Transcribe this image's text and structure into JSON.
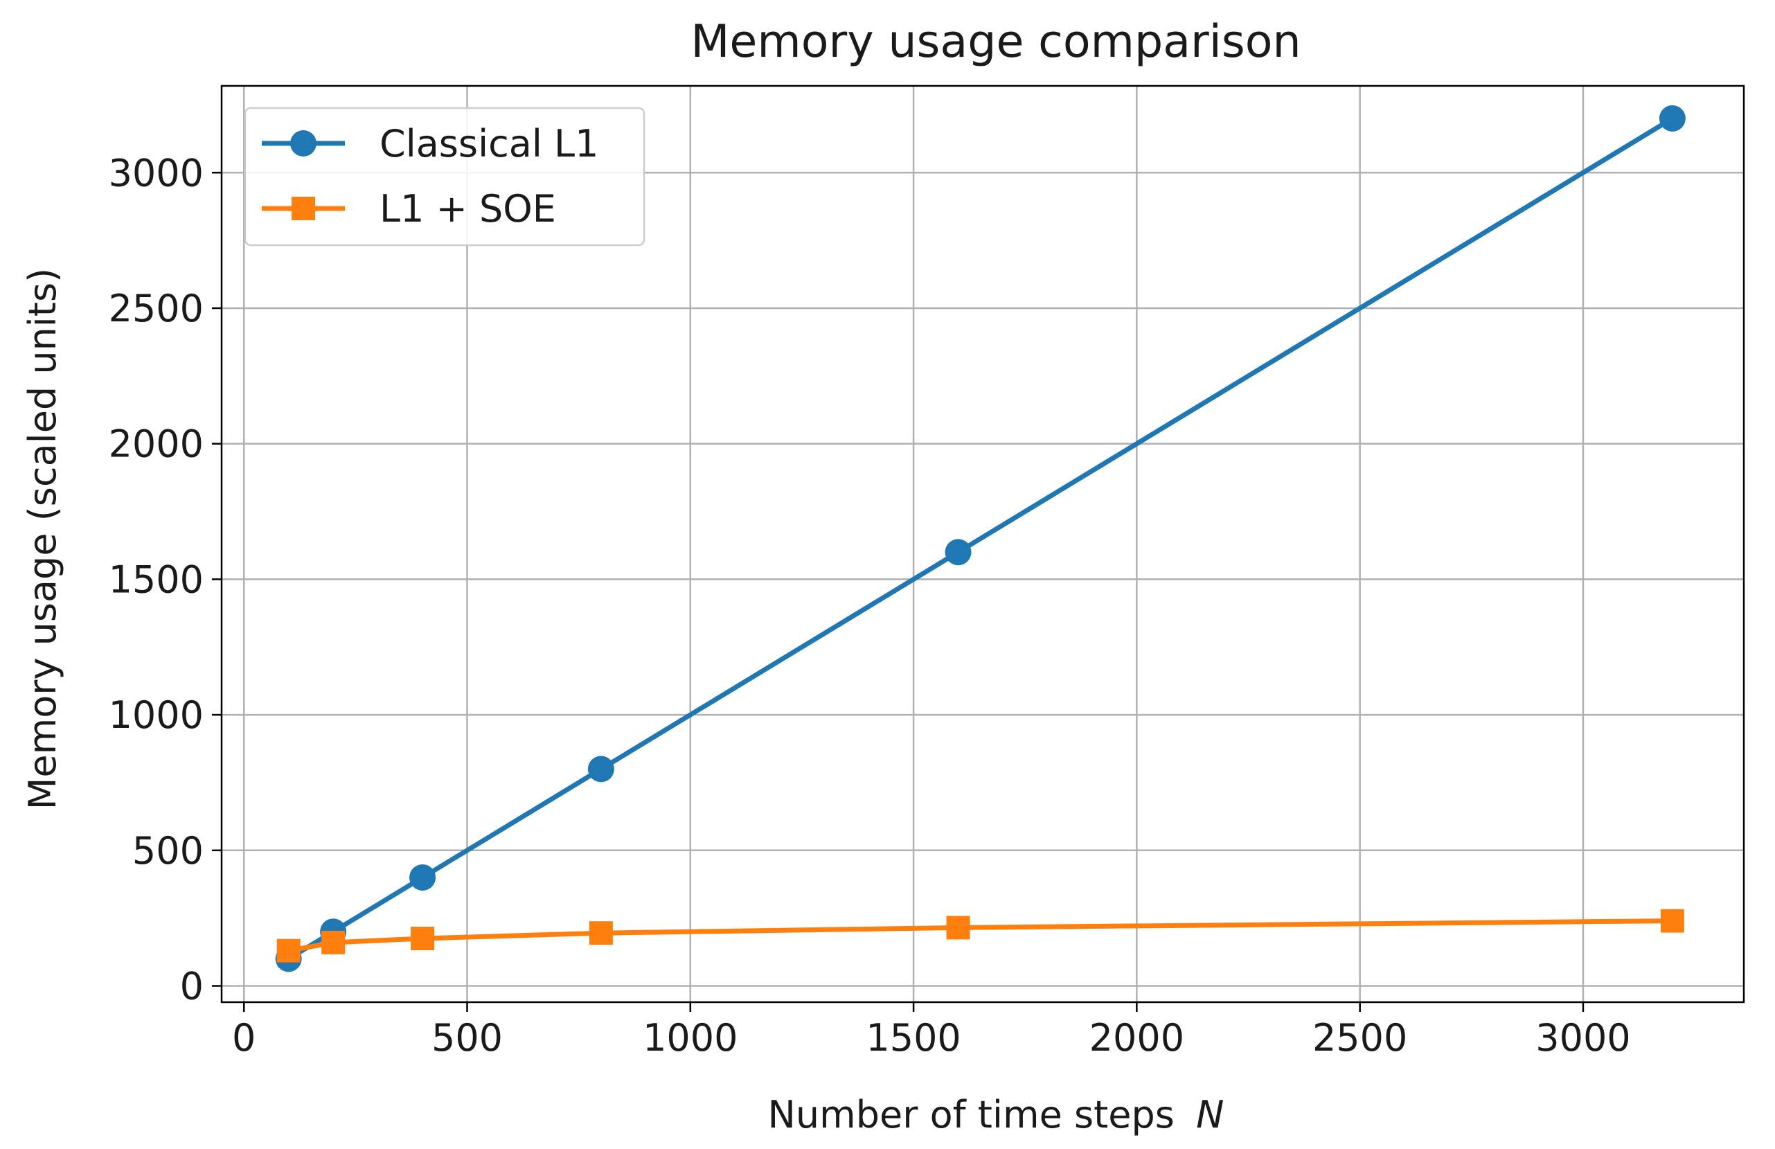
{
  "chart_data": {
    "type": "line",
    "title": "Memory usage comparison",
    "xlabel": "Number of time steps",
    "xlabel_var": "N",
    "ylabel": "Memory usage (scaled units)",
    "xlim": [
      -50,
      3360
    ],
    "ylim": [
      -60,
      3320
    ],
    "xticks": [
      0,
      500,
      1000,
      1500,
      2000,
      2500,
      3000
    ],
    "yticks": [
      0,
      500,
      1000,
      1500,
      2000,
      2500,
      3000
    ],
    "grid": true,
    "legend_position": "upper-left",
    "series": [
      {
        "name": "Classical L1",
        "color": "#1f77b4",
        "marker": "circle",
        "x": [
          100,
          200,
          400,
          800,
          1600,
          3200
        ],
        "y": [
          100,
          200,
          400,
          800,
          1600,
          3200
        ]
      },
      {
        "name": "L1 + SOE",
        "color": "#ff7f0e",
        "marker": "square",
        "x": [
          100,
          200,
          400,
          800,
          1600,
          3200
        ],
        "y": [
          130,
          160,
          175,
          195,
          215,
          240
        ]
      }
    ]
  }
}
